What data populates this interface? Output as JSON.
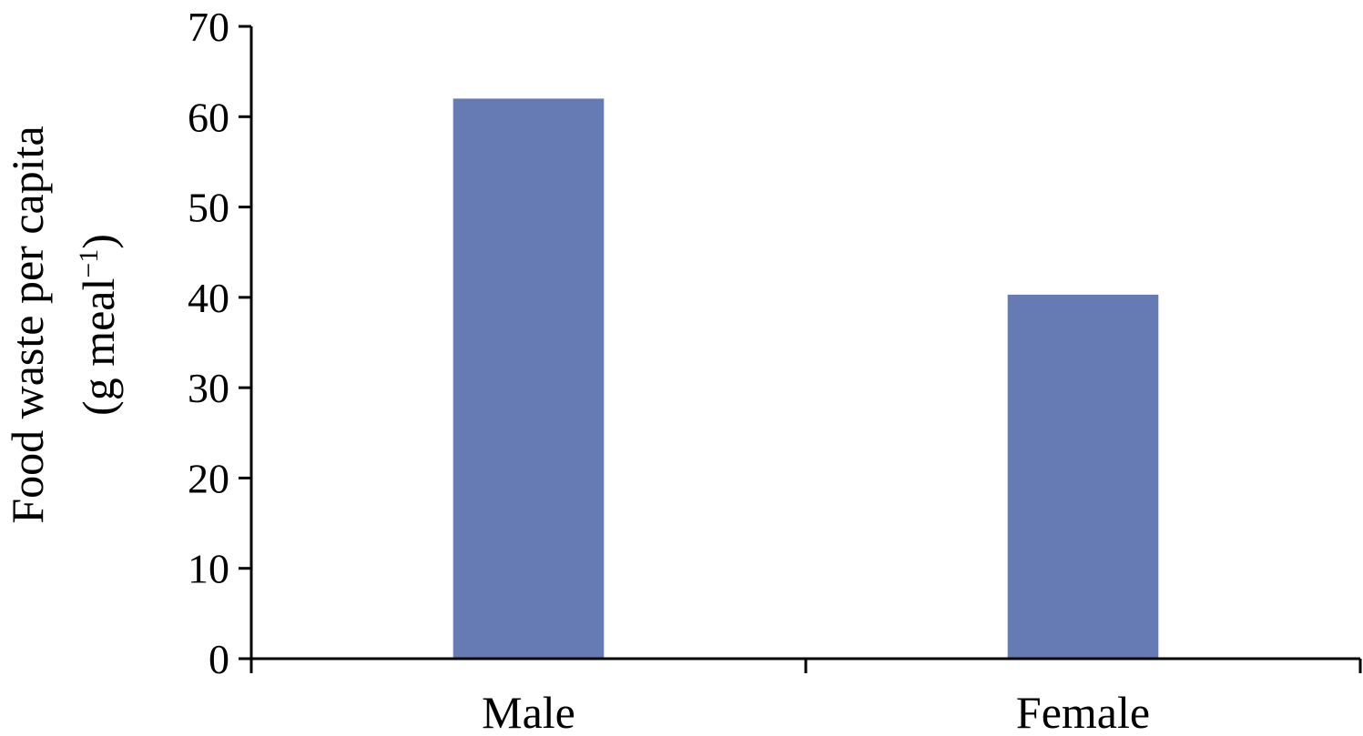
{
  "chart_data": {
    "type": "bar",
    "categories": [
      "Male",
      "Female"
    ],
    "values": [
      62,
      40.3
    ],
    "title": "",
    "xlabel": "",
    "ylabel_line1": "Food waste per capita",
    "ylabel_line2_prefix": "(g meal",
    "ylabel_line2_sup": "−1",
    "ylabel_line2_suffix": ")",
    "ylim": [
      0,
      70
    ],
    "yticks": [
      0,
      10,
      20,
      30,
      40,
      50,
      60,
      70
    ],
    "grid": false,
    "legend": "none",
    "bar_color": "#667BB4",
    "axis_color": "#000000"
  }
}
